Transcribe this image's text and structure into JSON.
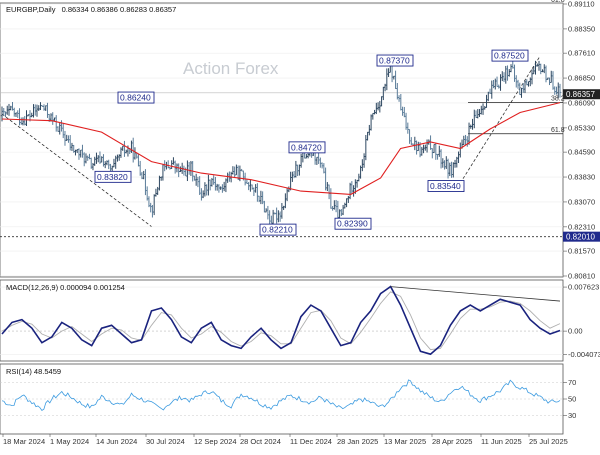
{
  "chart_data": [
    {
      "type": "candlestick",
      "title": "EURGBP,Daily",
      "ohlc_readout": "0.86334 0.86386 0.86283 0.86357",
      "watermark": "Action Forex",
      "y_ticks": [
        "0.89110",
        "0.88350",
        "0.87610",
        "0.86850",
        "0.86090",
        "0.85330",
        "0.84590",
        "0.83830",
        "0.83070",
        "0.82310",
        "0.81570",
        "0.80810"
      ],
      "y_tick_values": [
        0.8911,
        0.8835,
        0.8761,
        0.8685,
        0.8609,
        0.8533,
        0.8459,
        0.8383,
        0.8307,
        0.8231,
        0.8157,
        0.8081
      ],
      "ylim": [
        0.8081,
        0.8911
      ],
      "current_price": "0.86357",
      "horizontal_levels": [
        {
          "value": 0.8201,
          "label": "0.82010",
          "style": "dotted"
        },
        {
          "value": 0.864,
          "label": "",
          "style": "solid-gray"
        }
      ],
      "fib_levels": [
        {
          "label": "61.8",
          "value": 0.8911
        },
        {
          "label": "38.2",
          "value": 0.861
        },
        {
          "label": "61.8",
          "value": 0.8515
        }
      ],
      "annotations": [
        {
          "label": "0.86240",
          "value": 0.8624,
          "date_index": 4
        },
        {
          "label": "0.83820",
          "value": 0.8382,
          "date_index": 6
        },
        {
          "label": "0.82210",
          "value": 0.8221,
          "date_index": 14
        },
        {
          "label": "0.84720",
          "value": 0.8472,
          "date_index": 15
        },
        {
          "label": "0.82390",
          "value": 0.8239,
          "date_index": 17
        },
        {
          "label": "0.87370",
          "value": 0.8737,
          "date_index": 20
        },
        {
          "label": "0.83540",
          "value": 0.8354,
          "date_index": 22
        },
        {
          "label": "0.87520",
          "value": 0.8752,
          "date_index": 26
        }
      ],
      "x_labels": [
        "18 Mar 2024",
        "1 May 2024",
        "14 Jun 2024",
        "30 Jul 2024",
        "12 Sep 2024",
        "28 Oct 2024",
        "11 Dec 2024",
        "28 Jan 2025",
        "13 Mar 2025",
        "28 Apr 2025",
        "11 Jun 2025",
        "25 Jul 2025"
      ],
      "price_path": [
        [
          0,
          0.857
        ],
        [
          1,
          0.8585
        ],
        [
          2,
          0.8555
        ],
        [
          3,
          0.8575
        ],
        [
          4,
          0.86
        ],
        [
          5,
          0.856
        ],
        [
          6,
          0.852
        ],
        [
          7,
          0.847
        ],
        [
          8,
          0.845
        ],
        [
          9,
          0.842
        ],
        [
          10,
          0.844
        ],
        [
          11,
          0.84
        ],
        [
          12,
          0.846
        ],
        [
          13,
          0.847
        ],
        [
          14,
          0.84
        ],
        [
          15,
          0.828
        ],
        [
          16,
          0.84
        ],
        [
          17,
          0.8424
        ],
        [
          18,
          0.8395
        ],
        [
          19,
          0.841
        ],
        [
          20,
          0.833
        ],
        [
          21,
          0.838
        ],
        [
          22,
          0.834
        ],
        [
          23,
          0.84
        ],
        [
          24,
          0.839
        ],
        [
          25,
          0.836
        ],
        [
          26,
          0.831
        ],
        [
          27,
          0.825
        ],
        [
          28,
          0.828
        ],
        [
          29,
          0.837
        ],
        [
          30,
          0.844
        ],
        [
          31,
          0.846
        ],
        [
          32,
          0.842
        ],
        [
          33,
          0.83
        ],
        [
          34,
          0.826
        ],
        [
          35,
          0.835
        ],
        [
          36,
          0.84
        ],
        [
          37,
          0.856
        ],
        [
          38,
          0.862
        ],
        [
          39,
          0.872
        ],
        [
          40,
          0.859
        ],
        [
          41,
          0.85
        ],
        [
          42,
          0.846
        ],
        [
          43,
          0.848
        ],
        [
          44,
          0.844
        ],
        [
          45,
          0.84
        ],
        [
          46,
          0.846
        ],
        [
          47,
          0.853
        ],
        [
          48,
          0.859
        ],
        [
          49,
          0.864
        ],
        [
          50,
          0.868
        ],
        [
          51,
          0.872
        ],
        [
          52,
          0.864
        ],
        [
          53,
          0.869
        ],
        [
          54,
          0.872
        ],
        [
          55,
          0.868
        ],
        [
          56,
          0.864
        ]
      ],
      "ma_path": [
        [
          0,
          0.856
        ],
        [
          5,
          0.8555
        ],
        [
          10,
          0.852
        ],
        [
          15,
          0.843
        ],
        [
          20,
          0.8395
        ],
        [
          25,
          0.8375
        ],
        [
          30,
          0.834
        ],
        [
          35,
          0.833
        ],
        [
          38,
          0.838
        ],
        [
          40,
          0.847
        ],
        [
          43,
          0.849
        ],
        [
          46,
          0.847
        ],
        [
          49,
          0.853
        ],
        [
          52,
          0.858
        ],
        [
          56,
          0.861
        ]
      ]
    },
    {
      "type": "line",
      "title": "MACD(12,26,9) 0.000094 0.001254",
      "y_ticks": [
        "0.007623",
        "0.00",
        "-0.004073"
      ],
      "y_tick_values": [
        0.007623,
        0.0,
        -0.004073
      ],
      "ylim": [
        -0.005,
        0.0085
      ],
      "series_main": [
        -0.0005,
        0.0015,
        0.002,
        0.0005,
        -0.002,
        -0.001,
        0.0015,
        0.0005,
        -0.0015,
        -0.0025,
        0.0005,
        0.001,
        -0.0005,
        -0.002,
        -0.0015,
        0.0035,
        0.004,
        0.002,
        -0.001,
        -0.002,
        0.0005,
        0.0015,
        -0.0015,
        -0.0025,
        -0.003,
        -0.001,
        0.0005,
        -0.0015,
        -0.003,
        -0.002,
        0.0025,
        0.0045,
        0.0035,
        0.0005,
        -0.0025,
        -0.002,
        0.0015,
        0.0035,
        0.0065,
        0.0077,
        0.0045,
        0.0005,
        -0.0035,
        -0.004,
        -0.0025,
        0.001,
        0.0035,
        0.0045,
        0.0035,
        0.0045,
        0.0055,
        0.005,
        0.0045,
        0.002,
        0.0005,
        -0.0005,
        0.0001
      ],
      "series_signal": [
        0.0,
        0.001,
        0.0017,
        0.0012,
        -0.0005,
        -0.0012,
        0.0,
        0.0008,
        -0.0005,
        -0.0018,
        -0.0005,
        0.0005,
        0.0002,
        -0.0012,
        -0.0016,
        0.001,
        0.0032,
        0.0028,
        0.0005,
        -0.0012,
        -0.0005,
        0.0008,
        -0.0002,
        -0.0018,
        -0.0026,
        -0.0018,
        -0.0003,
        -0.0008,
        -0.0022,
        -0.0022,
        0.0005,
        0.0032,
        0.0036,
        0.0018,
        -0.0012,
        -0.0022,
        -0.0002,
        0.0022,
        0.0048,
        0.0068,
        0.006,
        0.0028,
        -0.0012,
        -0.0032,
        -0.003,
        -0.0005,
        0.0022,
        0.0038,
        0.0038,
        0.0042,
        0.005,
        0.0052,
        0.0048,
        0.0035,
        0.0018,
        0.0005,
        0.0013
      ],
      "trendline": [
        [
          39,
          0.0077
        ],
        [
          56,
          0.0052
        ]
      ]
    },
    {
      "type": "line",
      "title": "RSI(14) 48.5459",
      "y_ticks": [
        "70",
        "50",
        "30"
      ],
      "y_tick_values": [
        70,
        50,
        30
      ],
      "ylim": [
        10,
        90
      ],
      "series": [
        48,
        42,
        55,
        46,
        38,
        50,
        58,
        52,
        44,
        40,
        53,
        47,
        42,
        55,
        50,
        44,
        38,
        46,
        52,
        48,
        56,
        60,
        48,
        42,
        56,
        52,
        44,
        40,
        48,
        54,
        50,
        46,
        52,
        44,
        38,
        42,
        50,
        46,
        40,
        48,
        64,
        72,
        60,
        52,
        46,
        58,
        66,
        56,
        48,
        54,
        60,
        70,
        64,
        58,
        52,
        46,
        48
      ]
    }
  ]
}
